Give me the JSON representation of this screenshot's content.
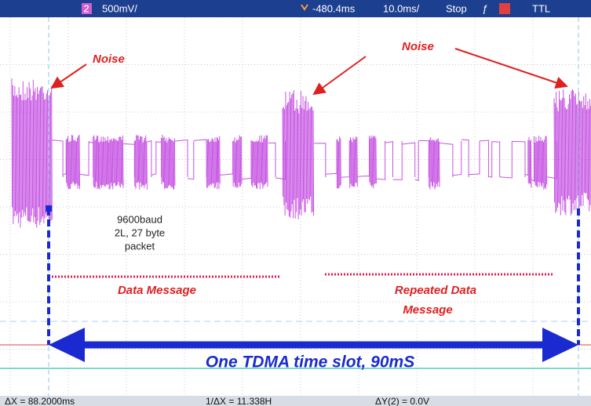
{
  "header": {
    "channel": "2",
    "scale": "500mV/",
    "delay": "-480.4ms",
    "timebase": "10.0ms/",
    "status": "Stop",
    "trigger": "TTL"
  },
  "annotations": {
    "noise_left": "Noise",
    "noise_right": "Noise",
    "baud_lines": [
      "9600baud",
      "2L, 27 byte",
      "packet"
    ],
    "data_message": "Data Message",
    "repeated_lines": [
      "Repeated Data",
      "Message"
    ],
    "slot": "One TDMA time slot, 90mS"
  },
  "footer": {
    "delta_x": "ΔX = 88.2000ms",
    "inverse_delta_x": "1/ΔX = 11.338H",
    "delta_y": "ΔY(2) = 0.0V"
  }
}
